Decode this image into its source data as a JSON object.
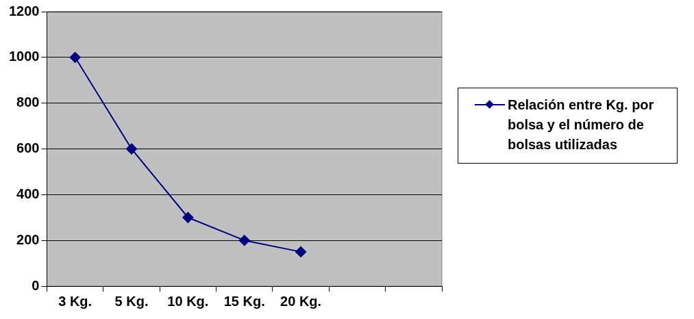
{
  "chart_data": {
    "type": "line",
    "categories": [
      "3 Kg.",
      "5 Kg.",
      "10 Kg.",
      "15 Kg.",
      "20 Kg.",
      null,
      null
    ],
    "series": [
      {
        "name": "Relación entre Kg. por bolsa y el número de bolsas utilizadas",
        "color": "#000080",
        "values": [
          1000,
          600,
          300,
          200,
          150,
          null,
          null
        ]
      }
    ],
    "ylim": [
      0,
      1200
    ],
    "yticks": [
      0,
      200,
      400,
      600,
      800,
      1000,
      1200
    ],
    "grid": "y",
    "legend": "right",
    "marker": "diamond",
    "line_style": "solid"
  }
}
